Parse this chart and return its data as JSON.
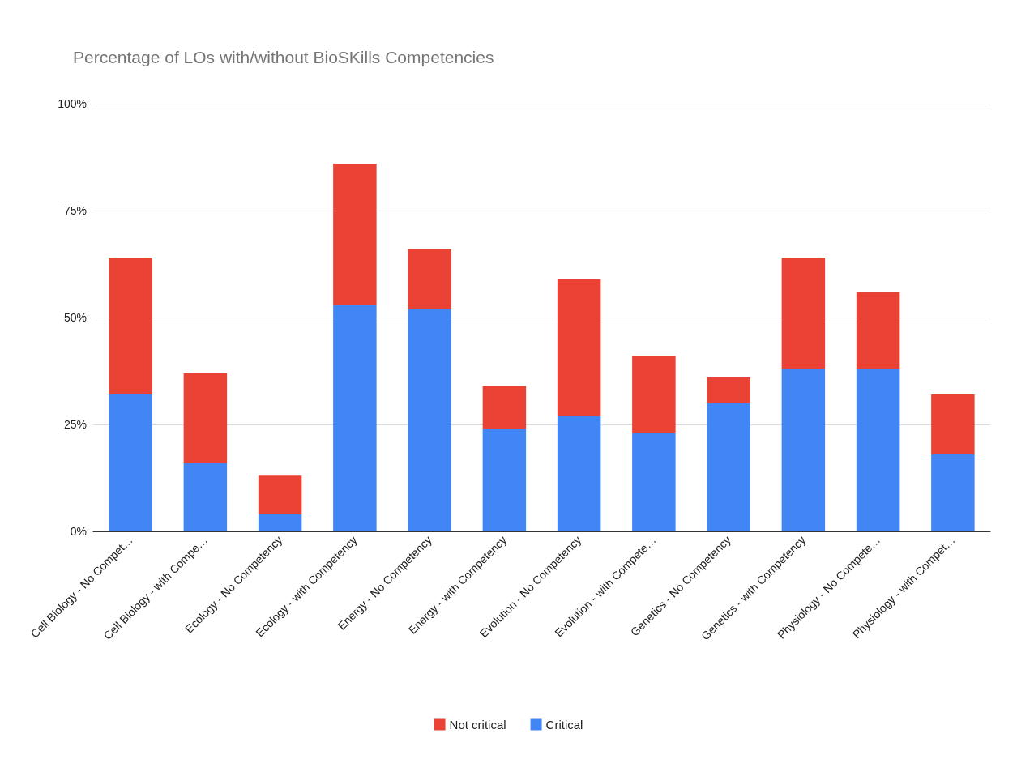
{
  "chart_data": {
    "type": "bar",
    "title": "Percentage of LOs with/without BioSKills Competencies",
    "categories": [
      "Cell Biology - No Compet…",
      "Cell Biology - with Compe…",
      "Ecology - No Competency",
      "Ecology - with Competency",
      "Energy - No Competency",
      "Energy - with Competency",
      "Evolution - No Competency",
      "Evolution - with Compete…",
      "Genetics - No Competency",
      "Genetics - with Competency",
      "Physiology - No Compete…",
      "Physiology - with Compet…"
    ],
    "series": [
      {
        "name": "Critical",
        "color": "#4285f4",
        "values": [
          32,
          16,
          4,
          53,
          52,
          24,
          27,
          23,
          30,
          38,
          38,
          18
        ]
      },
      {
        "name": "Not critical",
        "color": "#ea4335",
        "values": [
          32,
          21,
          9,
          33,
          14,
          10,
          32,
          18,
          6,
          26,
          18,
          14
        ]
      }
    ],
    "stacked": true,
    "ylim": [
      0,
      100
    ],
    "yticks": [
      {
        "value": 0,
        "label": "0%"
      },
      {
        "value": 25,
        "label": "25%"
      },
      {
        "value": 50,
        "label": "50%"
      },
      {
        "value": 75,
        "label": "75%"
      },
      {
        "value": 100,
        "label": "100%"
      }
    ],
    "grid": "y",
    "legend": "bottom"
  }
}
